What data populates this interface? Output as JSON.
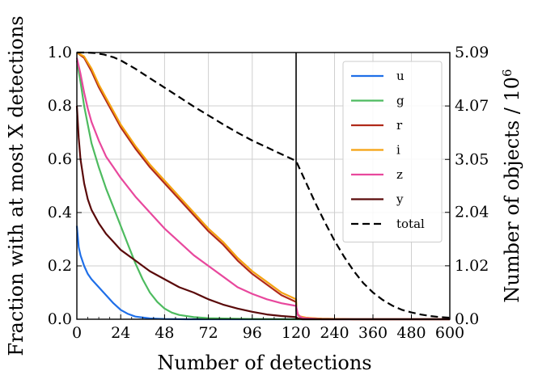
{
  "chart_data": {
    "type": "line",
    "xlabel": "Number of detections",
    "ylabel_left": "Fraction with at most X detections",
    "ylabel_right": "Number of objects / 10",
    "ylabel_right_exponent": "6",
    "left_panel": {
      "xlim": [
        0,
        120
      ],
      "xticks": [
        "0",
        "24",
        "48",
        "72",
        "96",
        "120"
      ]
    },
    "right_panel": {
      "xlim": [
        120,
        600
      ],
      "xticks": [
        "120",
        "240",
        "360",
        "480",
        "600"
      ]
    },
    "ylim_left": [
      0,
      1
    ],
    "yticks_left": [
      "0.0",
      "0.2",
      "0.4",
      "0.6",
      "0.8",
      "1.0"
    ],
    "ylim_right": [
      0,
      5.09
    ],
    "yticks_right": [
      "0.0",
      "1.02",
      "2.04",
      "3.05",
      "4.07",
      "5.09"
    ],
    "grid": true,
    "legend_position": "upper-right of right panel",
    "series": [
      {
        "name": "u",
        "color": "#1f6fe8",
        "dash": false,
        "axis": "left",
        "x": [
          0,
          1,
          2,
          4,
          6,
          8,
          12,
          16,
          20,
          24,
          28,
          32,
          40,
          48,
          60,
          120,
          600
        ],
        "y": [
          0.35,
          0.27,
          0.24,
          0.2,
          0.17,
          0.15,
          0.12,
          0.09,
          0.06,
          0.035,
          0.02,
          0.01,
          0.003,
          0.001,
          0.0,
          0.0,
          0.0
        ]
      },
      {
        "name": "g",
        "color": "#4dbb5f",
        "dash": false,
        "axis": "left",
        "x": [
          0,
          2,
          4,
          6,
          8,
          12,
          16,
          20,
          24,
          28,
          32,
          36,
          40,
          44,
          48,
          52,
          56,
          64,
          72,
          96,
          120,
          200,
          600
        ],
        "y": [
          0.97,
          0.89,
          0.8,
          0.73,
          0.66,
          0.57,
          0.49,
          0.42,
          0.35,
          0.28,
          0.21,
          0.15,
          0.1,
          0.065,
          0.04,
          0.025,
          0.016,
          0.008,
          0.004,
          0.001,
          0.0,
          0.0,
          0.0
        ]
      },
      {
        "name": "r",
        "color": "#b02a1a",
        "dash": false,
        "axis": "left",
        "x": [
          0,
          4,
          8,
          12,
          16,
          20,
          24,
          32,
          40,
          48,
          56,
          64,
          72,
          80,
          88,
          96,
          104,
          112,
          120,
          121,
          126,
          132,
          150,
          200,
          300,
          600
        ],
        "y": [
          1.0,
          0.98,
          0.93,
          0.87,
          0.82,
          0.77,
          0.72,
          0.64,
          0.57,
          0.51,
          0.45,
          0.39,
          0.33,
          0.28,
          0.22,
          0.17,
          0.13,
          0.09,
          0.065,
          0.03,
          0.015,
          0.009,
          0.005,
          0.002,
          0.0,
          0.0
        ]
      },
      {
        "name": "i",
        "color": "#f5a210",
        "dash": false,
        "axis": "left",
        "x": [
          0,
          4,
          8,
          12,
          16,
          20,
          24,
          32,
          40,
          48,
          56,
          64,
          72,
          80,
          88,
          96,
          104,
          112,
          120,
          121,
          126,
          132,
          150,
          200,
          300,
          600
        ],
        "y": [
          1.0,
          0.985,
          0.94,
          0.88,
          0.83,
          0.78,
          0.73,
          0.65,
          0.58,
          0.52,
          0.46,
          0.4,
          0.34,
          0.29,
          0.23,
          0.18,
          0.14,
          0.1,
          0.075,
          0.035,
          0.018,
          0.011,
          0.006,
          0.002,
          0.0,
          0.0
        ]
      },
      {
        "name": "z",
        "color": "#e8489d",
        "dash": false,
        "axis": "left",
        "x": [
          0,
          2,
          4,
          6,
          8,
          12,
          16,
          20,
          24,
          32,
          40,
          48,
          56,
          64,
          72,
          80,
          88,
          96,
          104,
          112,
          120,
          126,
          140,
          200,
          600
        ],
        "y": [
          0.98,
          0.92,
          0.85,
          0.79,
          0.74,
          0.67,
          0.61,
          0.57,
          0.53,
          0.46,
          0.4,
          0.34,
          0.29,
          0.24,
          0.2,
          0.16,
          0.12,
          0.095,
          0.075,
          0.06,
          0.05,
          0.015,
          0.005,
          0.0,
          0.0
        ]
      },
      {
        "name": "y",
        "color": "#5a0a0a",
        "dash": false,
        "axis": "left",
        "x": [
          0,
          1,
          2,
          4,
          6,
          8,
          12,
          16,
          20,
          24,
          32,
          40,
          48,
          56,
          64,
          72,
          80,
          88,
          96,
          104,
          112,
          120,
          126,
          140,
          600
        ],
        "y": [
          0.8,
          0.68,
          0.6,
          0.51,
          0.45,
          0.41,
          0.36,
          0.32,
          0.29,
          0.26,
          0.22,
          0.18,
          0.15,
          0.12,
          0.1,
          0.075,
          0.055,
          0.04,
          0.028,
          0.018,
          0.012,
          0.008,
          0.003,
          0.0,
          0.0
        ]
      },
      {
        "name": "total",
        "color": "#000000",
        "dash": true,
        "axis": "right",
        "x": [
          0,
          5,
          10,
          15,
          20,
          24,
          32,
          40,
          48,
          56,
          64,
          72,
          80,
          88,
          96,
          104,
          112,
          120,
          150,
          180,
          210,
          240,
          270,
          300,
          330,
          360,
          390,
          420,
          450,
          480,
          510,
          540,
          570,
          600
        ],
        "y": [
          5.09,
          5.09,
          5.08,
          5.05,
          5.0,
          4.94,
          4.78,
          4.6,
          4.42,
          4.24,
          4.06,
          3.89,
          3.72,
          3.56,
          3.41,
          3.28,
          3.15,
          3.02,
          2.62,
          2.22,
          1.85,
          1.5,
          1.19,
          0.92,
          0.69,
          0.51,
          0.37,
          0.26,
          0.18,
          0.13,
          0.09,
          0.06,
          0.04,
          0.03
        ]
      }
    ]
  }
}
